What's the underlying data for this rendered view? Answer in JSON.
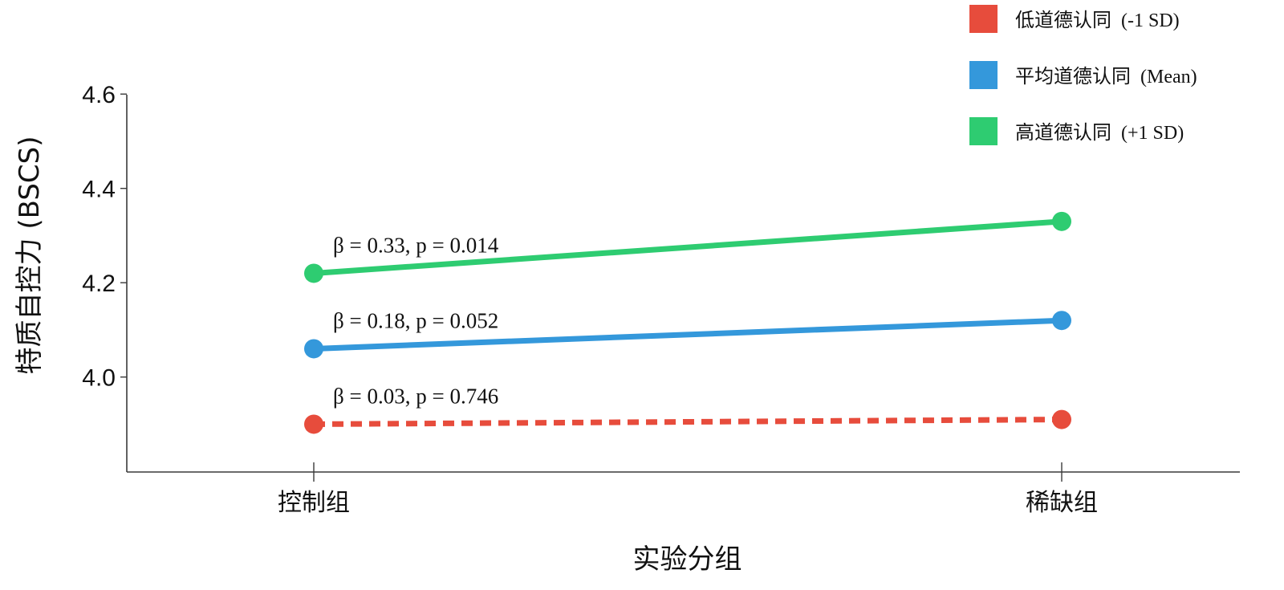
{
  "chart_data": {
    "type": "line",
    "xlabel": "实验分组",
    "ylabel": "特质自控力 (BSCS)",
    "categories": [
      "控制组",
      "稀缺组"
    ],
    "ylim": [
      3.8,
      4.6
    ],
    "yticks": [
      4.0,
      4.2,
      4.4,
      4.6
    ],
    "ytick_labels": [
      "4.0",
      "4.2",
      "4.4",
      "4.6"
    ],
    "grid": false,
    "legend_position": "top-right",
    "series": [
      {
        "name": "低道德认同  (-1 SD)",
        "values": [
          3.9,
          3.91
        ],
        "color": "#E74C3C",
        "line_style": "dashed",
        "annotation": "β = 0.03, p = 0.746"
      },
      {
        "name": "平均道德认同  (Mean)",
        "values": [
          4.06,
          4.12
        ],
        "color": "#3498DB",
        "line_style": "solid",
        "annotation": "β = 0.18, p = 0.052"
      },
      {
        "name": "高道德认同  (+1 SD)",
        "values": [
          4.22,
          4.33
        ],
        "color": "#2ECC71",
        "line_style": "solid",
        "annotation": "β = 0.33, p = 0.014"
      }
    ]
  }
}
